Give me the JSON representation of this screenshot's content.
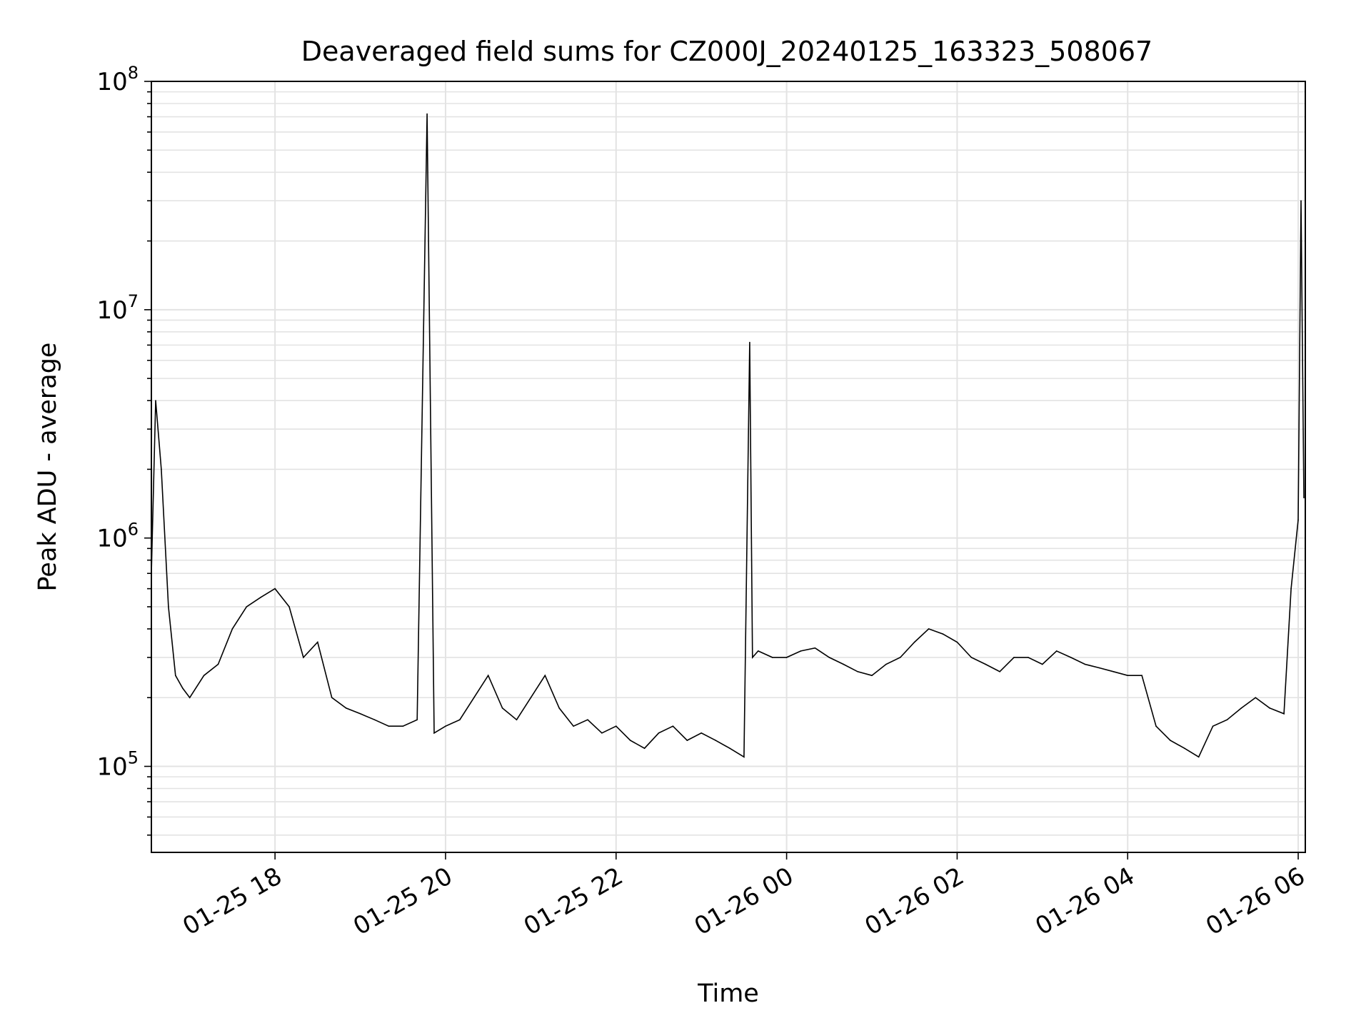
{
  "chart_data": {
    "type": "line",
    "title": "Deaveraged field sums for CZ000J_20240125_163323_508067",
    "xlabel": "Time",
    "ylabel": "Peak ADU - average",
    "y_scale": "log",
    "xlim": [
      "2024-01-25 16:33",
      "2024-01-26 06:05"
    ],
    "ylim": [
      42000,
      100000000
    ],
    "grid": true,
    "line_color": "#000000",
    "x_ticks": [
      {
        "t": "2024-01-25 18:00",
        "label": "01-25 18"
      },
      {
        "t": "2024-01-25 20:00",
        "label": "01-25 20"
      },
      {
        "t": "2024-01-25 22:00",
        "label": "01-25 22"
      },
      {
        "t": "2024-01-26 00:00",
        "label": "01-26 00"
      },
      {
        "t": "2024-01-26 02:00",
        "label": "01-26 02"
      },
      {
        "t": "2024-01-26 04:00",
        "label": "01-26 04"
      },
      {
        "t": "2024-01-26 06:00",
        "label": "01-26 06"
      }
    ],
    "y_ticks": [
      {
        "v": 100000,
        "base": "10",
        "exp": "5"
      },
      {
        "v": 1000000,
        "base": "10",
        "exp": "6"
      },
      {
        "v": 10000000,
        "base": "10",
        "exp": "7"
      },
      {
        "v": 100000000,
        "base": "10",
        "exp": "8"
      }
    ],
    "series": [
      {
        "x": [
          "2024-01-25 16:33",
          "2024-01-25 16:36",
          "2024-01-25 16:40",
          "2024-01-25 16:45",
          "2024-01-25 16:50",
          "2024-01-25 16:55",
          "2024-01-25 17:00",
          "2024-01-25 17:10",
          "2024-01-25 17:20",
          "2024-01-25 17:30",
          "2024-01-25 17:40",
          "2024-01-25 17:50",
          "2024-01-25 18:00",
          "2024-01-25 18:10",
          "2024-01-25 18:20",
          "2024-01-25 18:30",
          "2024-01-25 18:40",
          "2024-01-25 18:50",
          "2024-01-25 19:00",
          "2024-01-25 19:10",
          "2024-01-25 19:20",
          "2024-01-25 19:30",
          "2024-01-25 19:40",
          "2024-01-25 19:47",
          "2024-01-25 19:52",
          "2024-01-25 20:00",
          "2024-01-25 20:10",
          "2024-01-25 20:20",
          "2024-01-25 20:30",
          "2024-01-25 20:40",
          "2024-01-25 20:50",
          "2024-01-25 21:00",
          "2024-01-25 21:10",
          "2024-01-25 21:20",
          "2024-01-25 21:30",
          "2024-01-25 21:40",
          "2024-01-25 21:50",
          "2024-01-25 22:00",
          "2024-01-25 22:10",
          "2024-01-25 22:20",
          "2024-01-25 22:30",
          "2024-01-25 22:40",
          "2024-01-25 22:50",
          "2024-01-25 23:00",
          "2024-01-25 23:10",
          "2024-01-25 23:20",
          "2024-01-25 23:30",
          "2024-01-25 23:34",
          "2024-01-25 23:36",
          "2024-01-25 23:40",
          "2024-01-25 23:50",
          "2024-01-26 00:00",
          "2024-01-26 00:10",
          "2024-01-26 00:20",
          "2024-01-26 00:30",
          "2024-01-26 00:40",
          "2024-01-26 00:50",
          "2024-01-26 01:00",
          "2024-01-26 01:10",
          "2024-01-26 01:20",
          "2024-01-26 01:30",
          "2024-01-26 01:40",
          "2024-01-26 01:50",
          "2024-01-26 02:00",
          "2024-01-26 02:10",
          "2024-01-26 02:20",
          "2024-01-26 02:30",
          "2024-01-26 02:40",
          "2024-01-26 02:50",
          "2024-01-26 03:00",
          "2024-01-26 03:10",
          "2024-01-26 03:20",
          "2024-01-26 03:30",
          "2024-01-26 03:40",
          "2024-01-26 03:50",
          "2024-01-26 04:00",
          "2024-01-26 04:10",
          "2024-01-26 04:20",
          "2024-01-26 04:30",
          "2024-01-26 04:40",
          "2024-01-26 04:50",
          "2024-01-26 05:00",
          "2024-01-26 05:10",
          "2024-01-26 05:20",
          "2024-01-26 05:30",
          "2024-01-26 05:40",
          "2024-01-26 05:50",
          "2024-01-26 05:55",
          "2024-01-26 06:00",
          "2024-01-26 06:02",
          "2024-01-26 06:04"
        ],
        "y": [
          700000,
          4000000,
          2000000,
          500000,
          250000,
          220000,
          200000,
          250000,
          280000,
          400000,
          500000,
          550000,
          600000,
          500000,
          300000,
          350000,
          200000,
          180000,
          170000,
          160000,
          150000,
          150000,
          160000,
          72000000,
          140000,
          150000,
          160000,
          200000,
          250000,
          180000,
          160000,
          200000,
          250000,
          180000,
          150000,
          160000,
          140000,
          150000,
          130000,
          120000,
          140000,
          150000,
          130000,
          140000,
          130000,
          120000,
          110000,
          7200000,
          300000,
          320000,
          300000,
          300000,
          320000,
          330000,
          300000,
          280000,
          260000,
          250000,
          280000,
          300000,
          350000,
          400000,
          380000,
          350000,
          300000,
          280000,
          260000,
          300000,
          300000,
          280000,
          320000,
          300000,
          280000,
          270000,
          260000,
          250000,
          250000,
          150000,
          130000,
          120000,
          110000,
          150000,
          160000,
          180000,
          200000,
          180000,
          170000,
          600000,
          1200000,
          30000000,
          1500000
        ]
      }
    ]
  }
}
